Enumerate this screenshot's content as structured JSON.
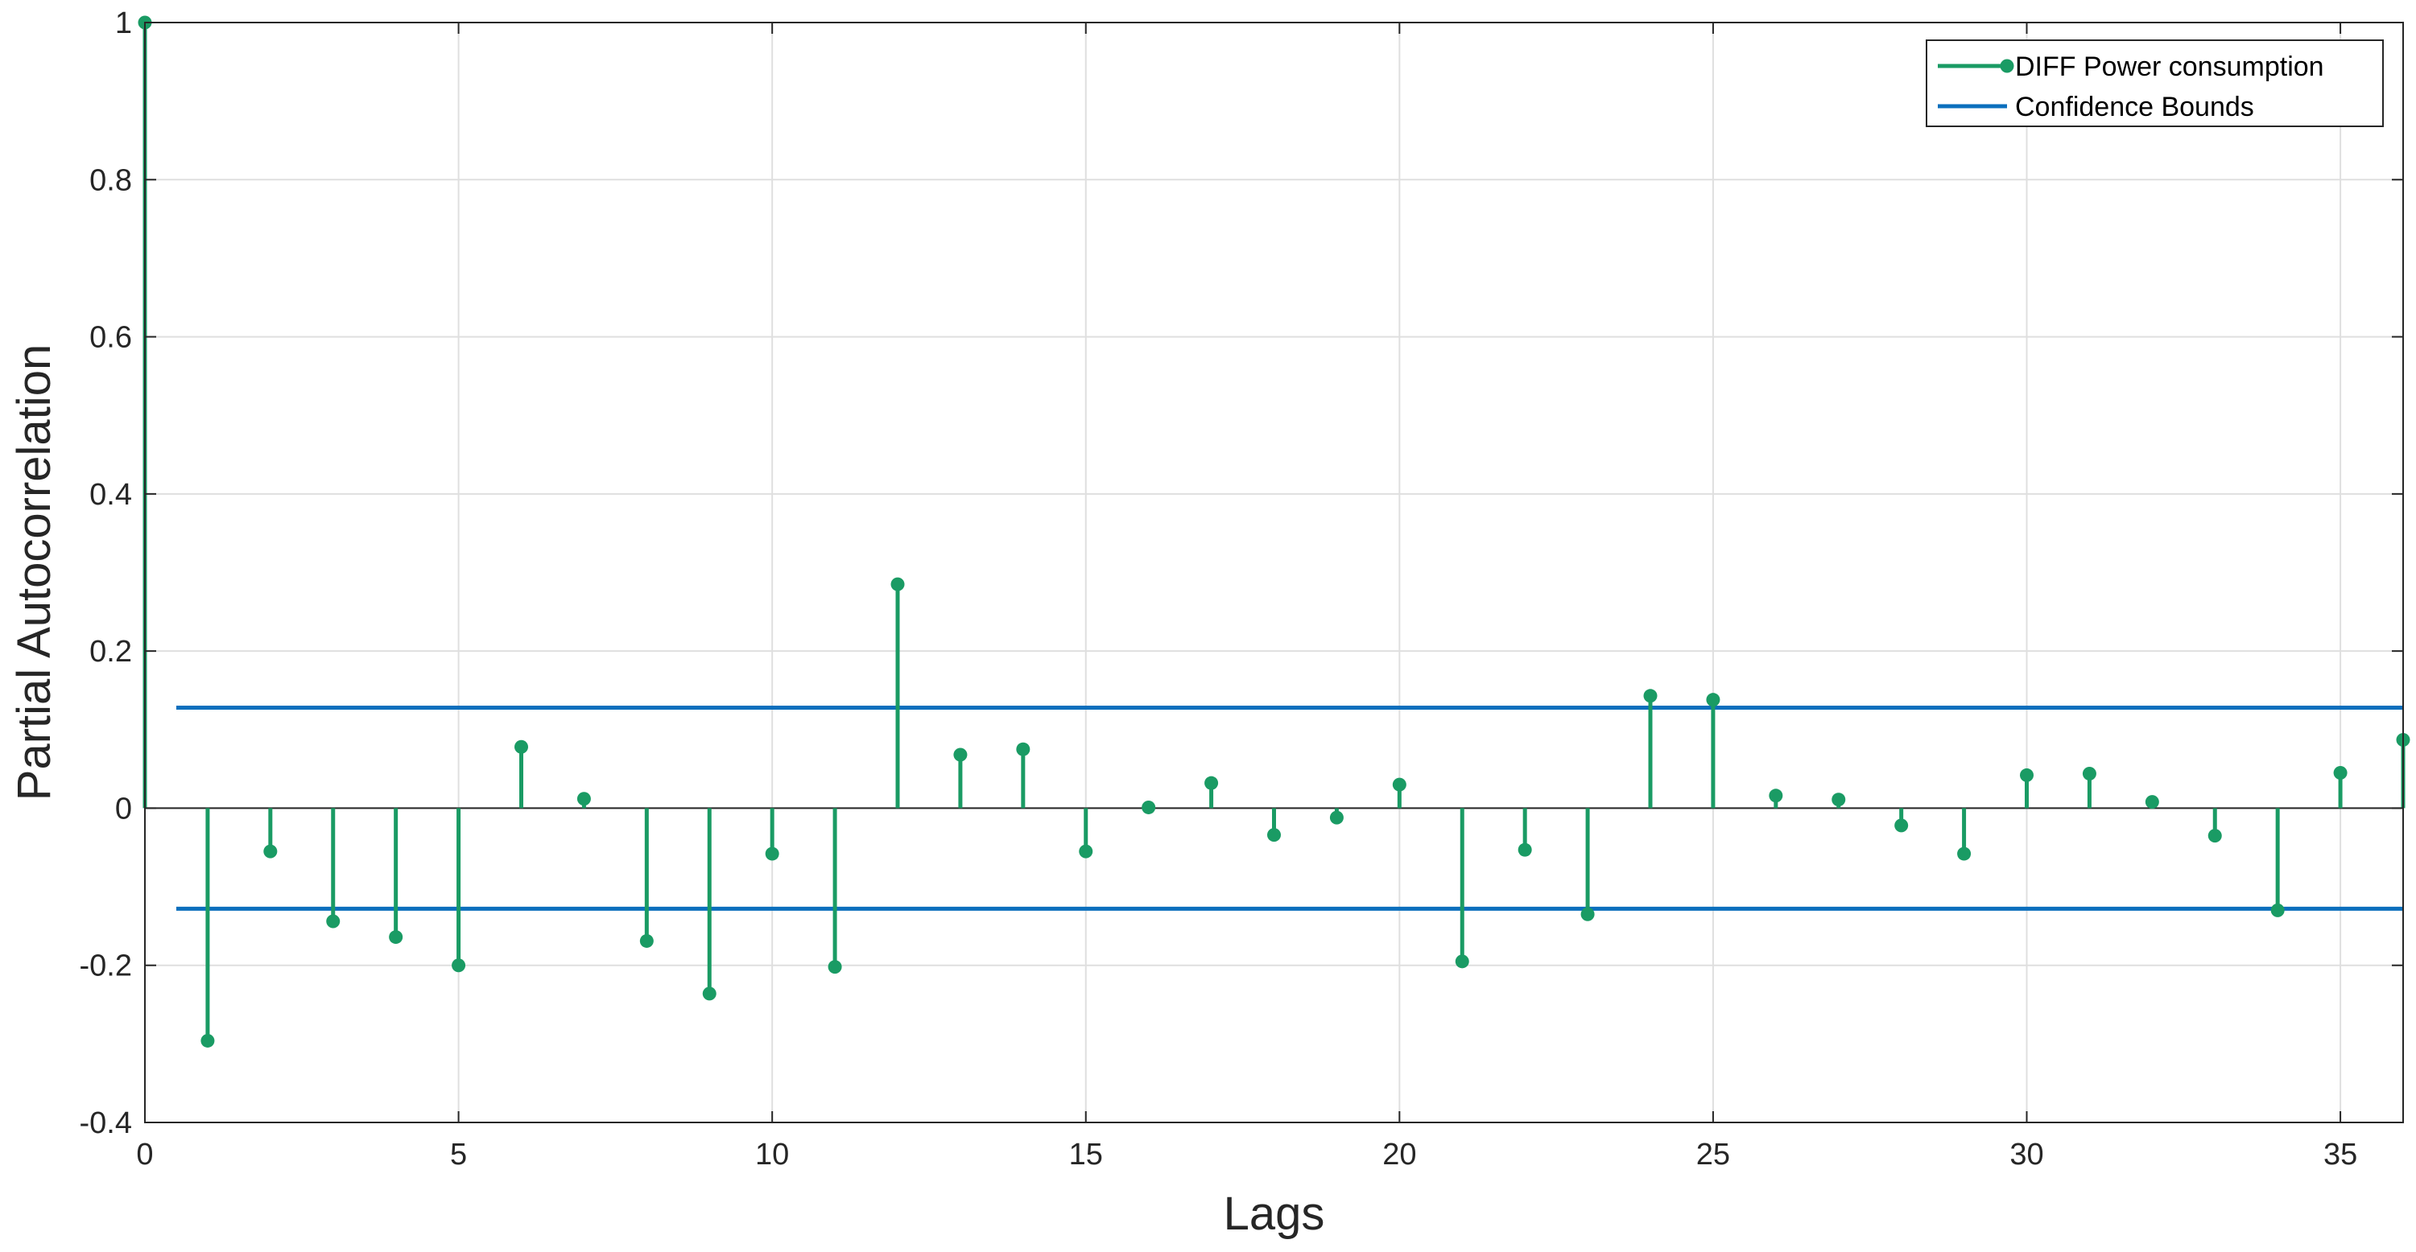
{
  "chart_data": {
    "type": "stem",
    "xlabel": "Lags",
    "ylabel": "Partial Autocorrelation",
    "xlim": [
      0,
      36
    ],
    "ylim": [
      -0.4,
      1
    ],
    "xticks": [
      0,
      5,
      10,
      15,
      20,
      25,
      30,
      35
    ],
    "yticks": [
      -0.4,
      -0.2,
      0,
      0.2,
      0.4,
      0.6,
      0.8,
      1
    ],
    "ytick_labels": [
      "-0.4",
      "-0.2",
      "0",
      "0.2",
      "0.4",
      "0.6",
      "0.8",
      "1"
    ],
    "grid": true,
    "legend": {
      "location": "top-right",
      "entries": [
        "DIFF Power consumption",
        "Confidence Bounds"
      ]
    },
    "series": [
      {
        "name": "DIFF Power consumption",
        "color": "#1a9b64",
        "x": [
          0,
          1,
          2,
          3,
          4,
          5,
          6,
          7,
          8,
          9,
          10,
          11,
          12,
          13,
          14,
          15,
          16,
          17,
          18,
          19,
          20,
          21,
          22,
          23,
          24,
          25,
          26,
          27,
          28,
          29,
          30,
          31,
          32,
          33,
          34,
          35,
          36
        ],
        "values": [
          1,
          -0.296,
          -0.055,
          -0.144,
          -0.164,
          -0.2,
          0.078,
          0.012,
          -0.169,
          -0.236,
          -0.058,
          -0.202,
          0.285,
          0.068,
          0.075,
          -0.055,
          0.001,
          0.032,
          -0.034,
          -0.012,
          0.03,
          -0.195,
          -0.053,
          -0.135,
          0.143,
          0.138,
          0.016,
          0.011,
          -0.022,
          -0.058,
          0.042,
          0.044,
          0.008,
          -0.035,
          -0.13,
          0.045,
          0.087
        ]
      }
    ],
    "confidence_bounds": {
      "name": "Confidence Bounds",
      "color": "#0b6fbd",
      "upper": 0.128,
      "lower": -0.128,
      "x_range": [
        0.5,
        36
      ]
    }
  }
}
